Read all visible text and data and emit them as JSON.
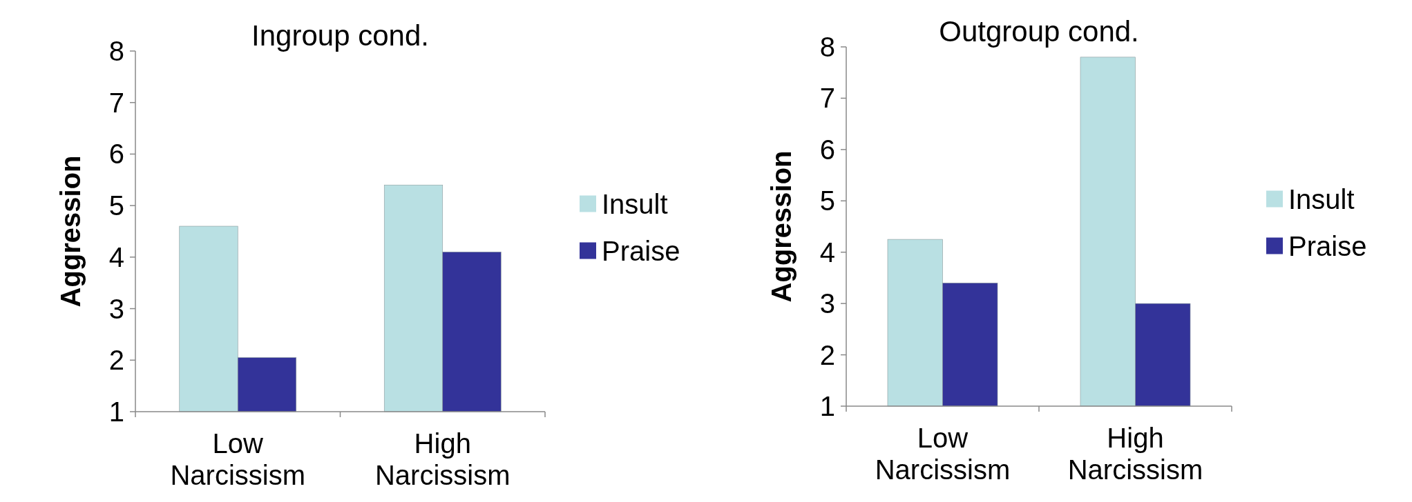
{
  "chart_data": [
    {
      "type": "bar",
      "title": "Ingroup cond.",
      "ylabel": "Aggression",
      "categories": [
        "Low Narcissism",
        "High Narcissism"
      ],
      "series": [
        {
          "name": "Insult",
          "color": "#b9e0e3",
          "values": [
            4.6,
            5.4
          ]
        },
        {
          "name": "Praise",
          "color": "#333399",
          "values": [
            2.05,
            4.1
          ]
        }
      ],
      "ylim": [
        1,
        8
      ],
      "yticks": [
        1,
        2,
        3,
        4,
        5,
        6,
        7,
        8
      ],
      "legend": "right"
    },
    {
      "type": "bar",
      "title": "Outgroup cond.",
      "ylabel": "Aggression",
      "categories": [
        "Low Narcissism",
        "High Narcissism"
      ],
      "series": [
        {
          "name": "Insult",
          "color": "#b9e0e3",
          "values": [
            4.25,
            7.8
          ]
        },
        {
          "name": "Praise",
          "color": "#333399",
          "values": [
            3.4,
            3.0
          ]
        }
      ],
      "ylim": [
        1,
        8
      ],
      "yticks": [
        1,
        2,
        3,
        4,
        5,
        6,
        7,
        8
      ],
      "legend": "right"
    }
  ]
}
